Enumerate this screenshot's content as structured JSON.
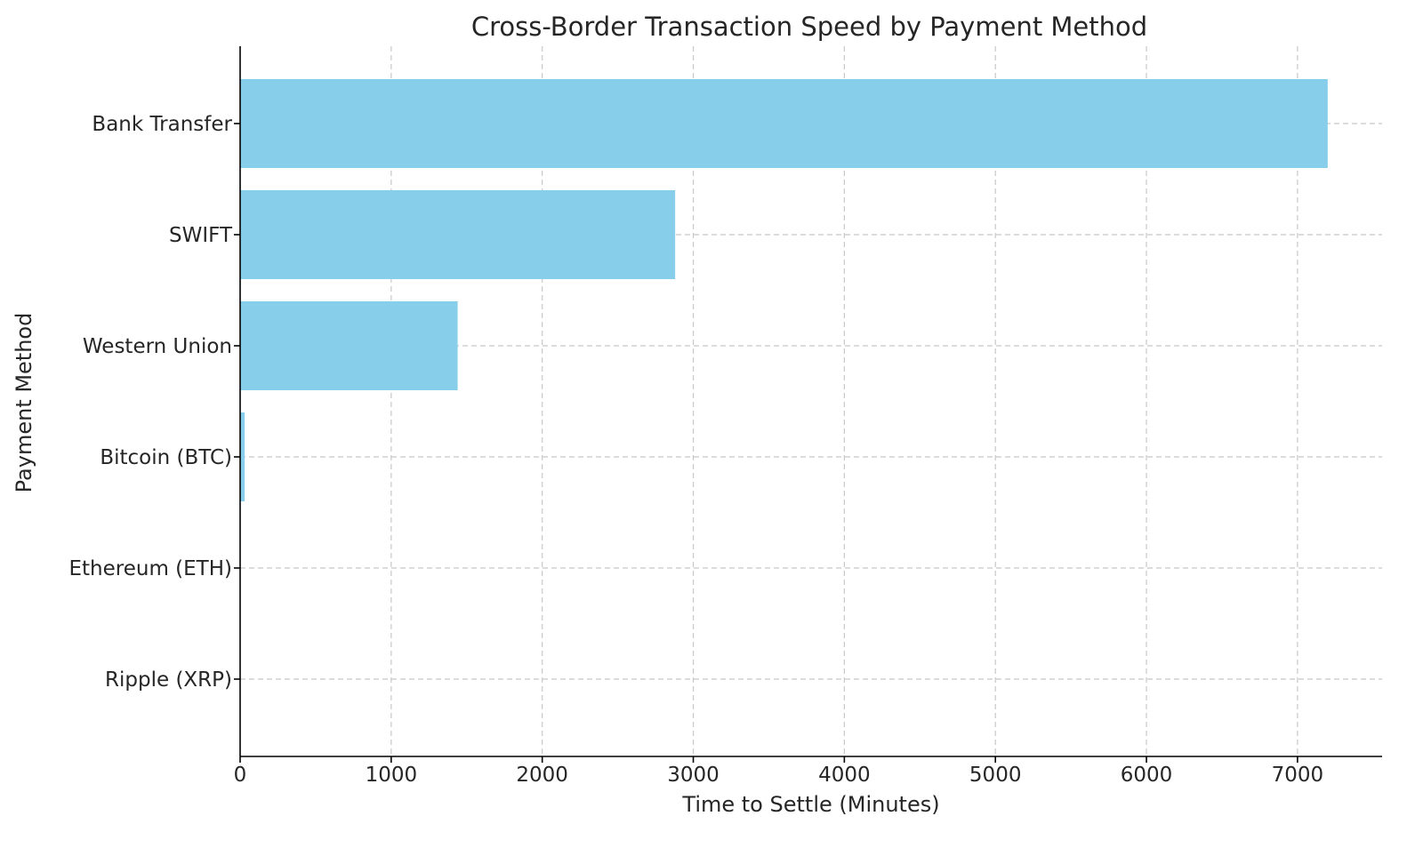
{
  "chart_data": {
    "type": "bar",
    "orientation": "horizontal",
    "title": "Cross-Border Transaction Speed by Payment Method",
    "xlabel": "Time to Settle (Minutes)",
    "ylabel": "Payment Method",
    "categories": [
      "Bank Transfer",
      "SWIFT",
      "Western Union",
      "Bitcoin (BTC)",
      "Ethereum (ETH)",
      "Ripple (XRP)"
    ],
    "values": [
      7200,
      2880,
      1440,
      30,
      0.25,
      0.07
    ],
    "xlim": [
      0,
      7560
    ],
    "xticks": [
      0,
      1000,
      2000,
      3000,
      4000,
      5000,
      6000,
      7000
    ],
    "xtick_labels": [
      "0",
      "1000",
      "2000",
      "3000",
      "4000",
      "5000",
      "6000",
      "7000"
    ],
    "grid": true,
    "colors": {
      "bar": "#87CEEB",
      "grid": "#c8c8c8",
      "axis": "#000000",
      "text": "#262626"
    }
  }
}
